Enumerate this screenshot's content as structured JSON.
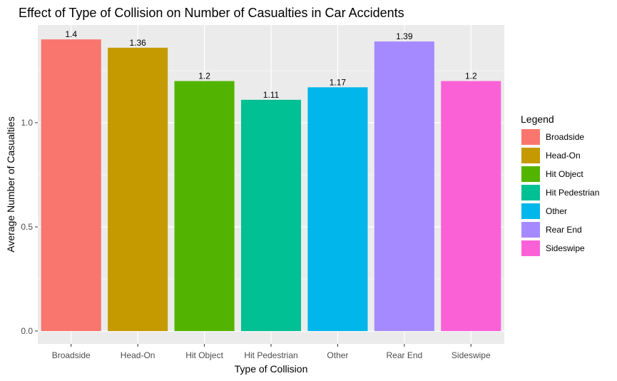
{
  "chart_data": {
    "type": "bar",
    "title": "Effect of Type of Collision on Number of Casualties in Car Accidents",
    "xlabel": "Type of Collision",
    "ylabel": "Average Number of Casualties",
    "categories": [
      "Broadside",
      "Head-On",
      "Hit Object",
      "Hit Pedestrian",
      "Other",
      "Rear End",
      "Sideswipe"
    ],
    "values": [
      1.4,
      1.36,
      1.2,
      1.11,
      1.17,
      1.39,
      1.2
    ],
    "data_labels": [
      "1.4",
      "1.36",
      "1.2",
      "1.11",
      "1.17",
      "1.39",
      "1.2"
    ],
    "colors": [
      "#F8766D",
      "#C49A00",
      "#53B400",
      "#00C094",
      "#00B6EB",
      "#A58AFF",
      "#FB61D7"
    ],
    "ylim": [
      0,
      1.4
    ],
    "yticks": [
      0.0,
      0.5,
      1.0
    ],
    "ytick_labels": [
      "0.0",
      "0.5",
      "1.0"
    ],
    "grid": true,
    "legend": {
      "title": "Legend",
      "position": "right",
      "entries": [
        "Broadside",
        "Head-On",
        "Hit Object",
        "Hit Pedestrian",
        "Other",
        "Rear End",
        "Sideswipe"
      ]
    },
    "panel_background": "#EBEBEB",
    "grid_color": "#FFFFFF"
  }
}
